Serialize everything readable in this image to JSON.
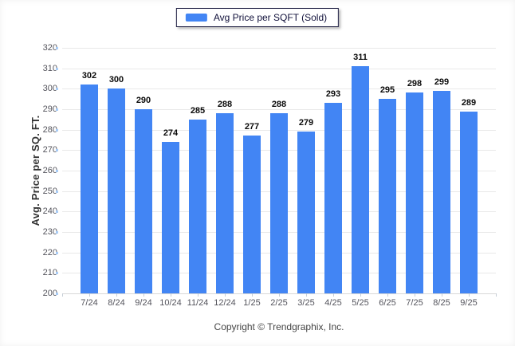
{
  "legend": {
    "label": "Avg Price per SQFT (Sold)"
  },
  "footer": {
    "copyright": "Copyright © Trendgraphix, Inc."
  },
  "colors": {
    "bar": "#4285f4",
    "grid": "#e9e9e9",
    "baseline": "#d8d8d8",
    "y_tick_mark": "#a8ccf6",
    "x_tick_mark": "#c6ced6",
    "axis_text": "#54545c",
    "value_text": "#0a0a0a",
    "legend_border": "#1e1e42",
    "legend_text": "#10103a"
  },
  "chart_data": {
    "type": "bar",
    "title": "Avg Price per SQFT (Sold)",
    "categories": [
      "7/24",
      "8/24",
      "9/24",
      "10/24",
      "11/24",
      "12/24",
      "1/25",
      "2/25",
      "3/25",
      "4/25",
      "5/25",
      "6/25",
      "7/25",
      "8/25",
      "9/25"
    ],
    "series": [
      {
        "name": "Avg Price per SQFT (Sold)",
        "values": [
          302,
          300,
          290,
          274,
          285,
          288,
          277,
          288,
          279,
          293,
          311,
          295,
          298,
          299,
          289
        ]
      }
    ],
    "xlabel": "",
    "ylabel": "Avg. Price per SQ. FT.",
    "ylim": [
      200,
      320
    ],
    "ytick_step": 10,
    "grid": true,
    "legend_position": "top-center",
    "footer": "Copyright © Trendgraphix, Inc."
  }
}
